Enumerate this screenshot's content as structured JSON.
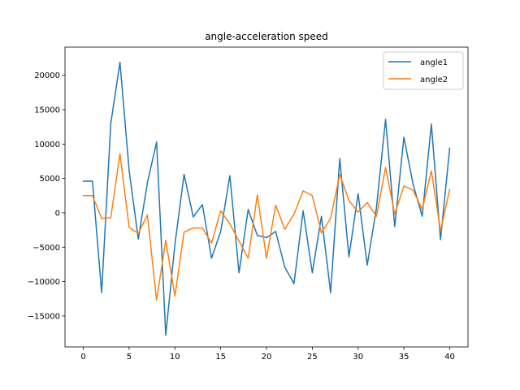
{
  "chart_data": {
    "type": "line",
    "title": "angle-acceleration speed",
    "xlabel": "",
    "ylabel": "",
    "xlim": [
      -2,
      42
    ],
    "ylim": [
      -19500,
      24100
    ],
    "x_ticks": [
      0,
      5,
      10,
      15,
      20,
      25,
      30,
      35,
      40
    ],
    "y_ticks": [
      -15000,
      -10000,
      -5000,
      0,
      5000,
      10000,
      15000,
      20000
    ],
    "x_tick_labels": [
      "0",
      "5",
      "10",
      "15",
      "20",
      "25",
      "30",
      "35",
      "40"
    ],
    "y_tick_labels": [
      "−15000",
      "−10000",
      "−5000",
      "0",
      "5000",
      "10000",
      "15000",
      "20000"
    ],
    "grid": false,
    "legend_position": "top-right",
    "x": [
      0,
      1,
      2,
      3,
      4,
      5,
      6,
      7,
      8,
      9,
      10,
      11,
      12,
      13,
      14,
      15,
      16,
      17,
      18,
      19,
      20,
      21,
      22,
      23,
      24,
      25,
      26,
      27,
      28,
      29,
      30,
      31,
      32,
      33,
      34,
      35,
      36,
      37,
      38,
      39,
      40
    ],
    "series": [
      {
        "name": "angle1",
        "color": "#1f77b4",
        "values": [
          4600,
          4600,
          -11600,
          13000,
          21900,
          6200,
          -3800,
          4400,
          10300,
          -17800,
          -4600,
          5600,
          -600,
          1200,
          -6600,
          -2700,
          5400,
          -8700,
          500,
          -3300,
          -3600,
          -2700,
          -7900,
          -10300,
          300,
          -8700,
          -500,
          -11600,
          7900,
          -6400,
          2800,
          -7600,
          700,
          13600,
          -2000,
          11000,
          4200,
          -500,
          12900,
          -3900,
          9400
        ]
      },
      {
        "name": "angle2",
        "color": "#ff7f0e",
        "values": [
          2500,
          2500,
          -800,
          -700,
          8600,
          -2100,
          -3000,
          -300,
          -12700,
          -4000,
          -12100,
          -2800,
          -2200,
          -2200,
          -4400,
          300,
          -1600,
          -4100,
          -6600,
          2600,
          -6600,
          1100,
          -2400,
          -200,
          3200,
          2500,
          -2900,
          -800,
          5600,
          1800,
          100,
          1500,
          -500,
          6600,
          -200,
          3900,
          3300,
          500,
          6100,
          -2600,
          3400
        ]
      }
    ]
  }
}
